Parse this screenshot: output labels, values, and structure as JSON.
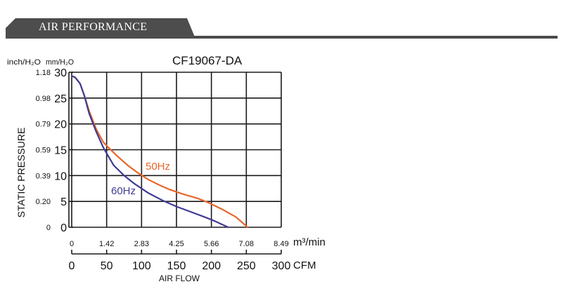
{
  "header": {
    "title": "AIR PERFORMANCE"
  },
  "colors": {
    "header_bg": "#4d4d4d",
    "curve_50hz": "#e8662a",
    "curve_60hz": "#3f3b94",
    "grid": "#1a1a1a"
  },
  "chart_data": {
    "type": "line",
    "title": "CF19067-DA",
    "ylabel": "STATIC PRESSURE",
    "xlabel": "AIR FLOW",
    "y_unit_left": "inch/H₂O",
    "y_unit_right": "mm/H₂O",
    "x_unit_top": "m³/min",
    "x_unit_bottom": "CFM",
    "xlim": [
      0,
      300
    ],
    "ylim": [
      0,
      30
    ],
    "grid": true,
    "y_ticks_mm": [
      "0",
      "5",
      "10",
      "15",
      "20",
      "25",
      "30"
    ],
    "y_ticks_inch": [
      "0",
      "0.20",
      "0.39",
      "0.59",
      "0.79",
      "0.98",
      "1.18"
    ],
    "x_ticks_cfm": [
      "0",
      "50",
      "100",
      "150",
      "200",
      "250",
      "300"
    ],
    "x_ticks_m3": [
      "0",
      "1.42",
      "2.83",
      "4.25",
      "5.66",
      "7.08",
      "8.49"
    ],
    "series": [
      {
        "name": "50Hz",
        "x": [
          0,
          5,
          12,
          18,
          25,
          35,
          45,
          52,
          65,
          80,
          95,
          110,
          125,
          140,
          160,
          180,
          195,
          215,
          235,
          252
        ],
        "y": [
          29.3,
          29.0,
          27.8,
          25.5,
          22.5,
          19.0,
          16.5,
          15.5,
          13.8,
          12.0,
          10.5,
          9.2,
          8.2,
          7.3,
          6.4,
          5.6,
          4.8,
          3.5,
          2.0,
          0.0
        ]
      },
      {
        "name": "60Hz",
        "x": [
          0,
          5,
          12,
          18,
          25,
          35,
          45,
          50,
          60,
          75,
          90,
          110,
          130,
          150,
          170,
          190,
          205,
          224
        ],
        "y": [
          29.3,
          29.0,
          27.8,
          25.5,
          22.0,
          18.5,
          15.5,
          14.3,
          12.0,
          10.0,
          8.4,
          6.6,
          5.2,
          4.0,
          3.0,
          2.0,
          1.2,
          0.0
        ]
      }
    ]
  }
}
